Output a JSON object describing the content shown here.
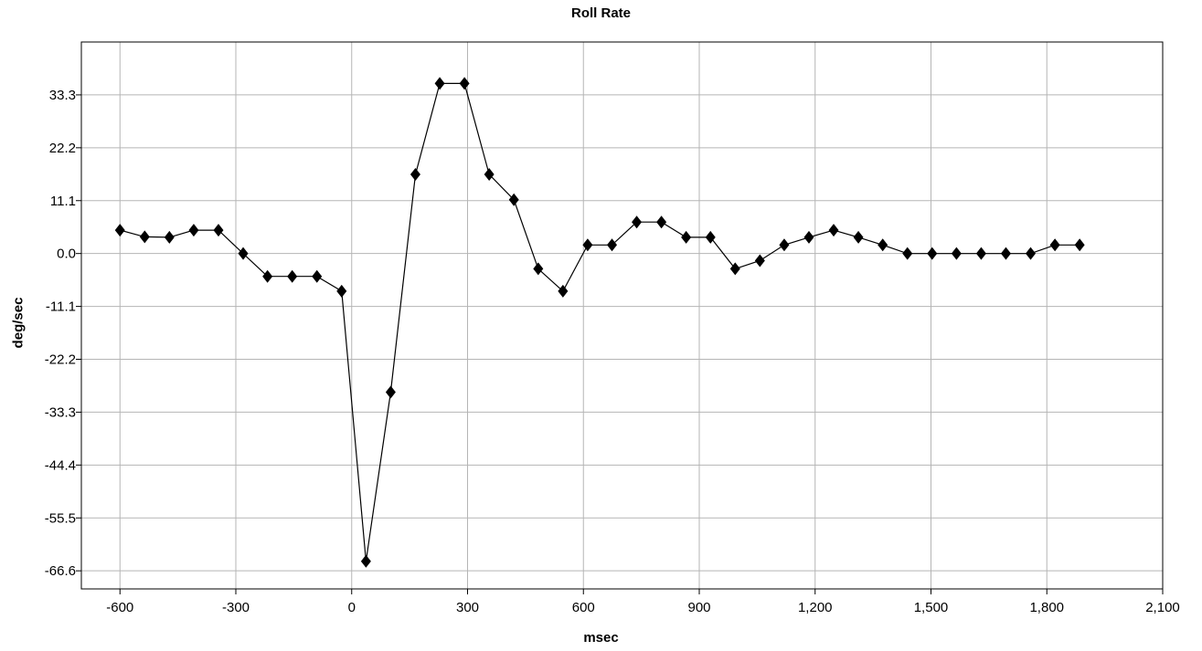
{
  "chart_data": {
    "type": "line",
    "title": "Roll Rate",
    "xlabel": "msec",
    "ylabel": "deg/sec",
    "xlim": [
      -700,
      2100
    ],
    "ylim": [
      -70.4,
      44.4
    ],
    "xticks": [
      -600,
      -300,
      0,
      300,
      600,
      900,
      1200,
      1500,
      1800,
      2100
    ],
    "xtick_labels": [
      "-600",
      "-300",
      "0",
      "300",
      "600",
      "900",
      "1,200",
      "1,500",
      "1,800",
      "2,100"
    ],
    "yticks": [
      33.3,
      22.2,
      11.1,
      0.0,
      -11.1,
      -22.2,
      -33.3,
      -44.4,
      -55.5,
      -66.6
    ],
    "ytick_labels": [
      "33.3",
      "22.2",
      "11.1",
      "0.0",
      "-11.1",
      "-22.2",
      "-33.3",
      "-44.4",
      "-55.5",
      "-66.6"
    ],
    "grid": true,
    "marker": "diamond",
    "color": "#000000",
    "series": [
      {
        "x": [
          -600,
          -536,
          -472,
          -409,
          -345,
          -281,
          -218,
          -154,
          -90,
          -26,
          37,
          101,
          165,
          228,
          292,
          356,
          420,
          483,
          547,
          611,
          674,
          738,
          802,
          866,
          929,
          993,
          1057,
          1120,
          1184,
          1248,
          1312,
          1375,
          1439,
          1503,
          1566,
          1630,
          1694,
          1758,
          1821,
          1885
        ],
        "y": [
          4.9,
          3.5,
          3.4,
          4.9,
          4.9,
          0.0,
          -4.8,
          -4.8,
          -4.8,
          -7.9,
          -64.6,
          -29.1,
          16.6,
          35.7,
          35.7,
          16.6,
          11.3,
          -3.2,
          -7.9,
          1.8,
          1.8,
          6.6,
          6.6,
          3.4,
          3.4,
          -3.2,
          -1.5,
          1.8,
          3.4,
          4.9,
          3.4,
          1.8,
          0.0,
          0.0,
          0.0,
          0.0,
          0.0,
          0.0,
          1.8,
          1.8
        ]
      }
    ]
  }
}
